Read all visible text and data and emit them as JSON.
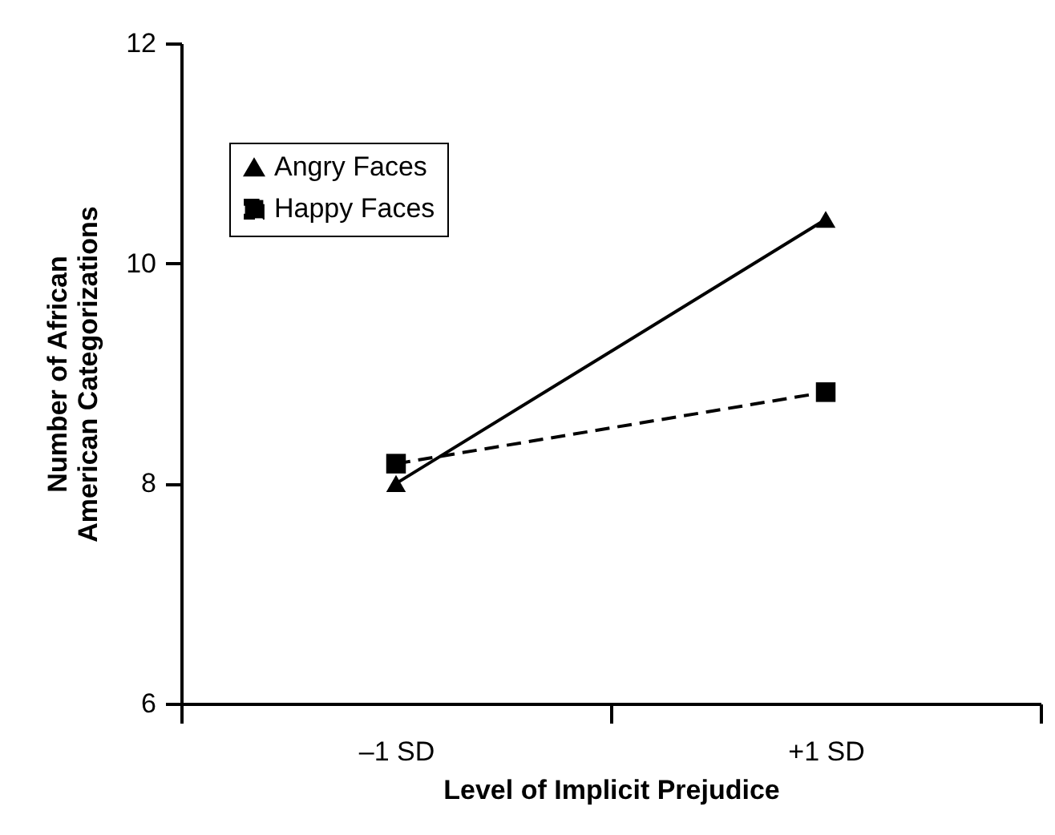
{
  "chart_data": {
    "type": "line",
    "xlabel": "Level of Implicit Prejudice",
    "ylabel": "Number of African American Categorizations",
    "categories": [
      "–1 SD",
      "+1 SD"
    ],
    "series": [
      {
        "name": "Angry Faces",
        "color": "#000000",
        "marker": "triangle",
        "line_style": "solid",
        "values": [
          8.0,
          10.4
        ]
      },
      {
        "name": "Happy Faces",
        "color": "#000000",
        "marker": "square",
        "line_style": "dashed",
        "values": [
          8.18,
          8.83
        ]
      }
    ],
    "ylim": [
      6,
      12
    ],
    "yticks": [
      6,
      8,
      10,
      12
    ],
    "grid": false,
    "legend": "top left"
  }
}
